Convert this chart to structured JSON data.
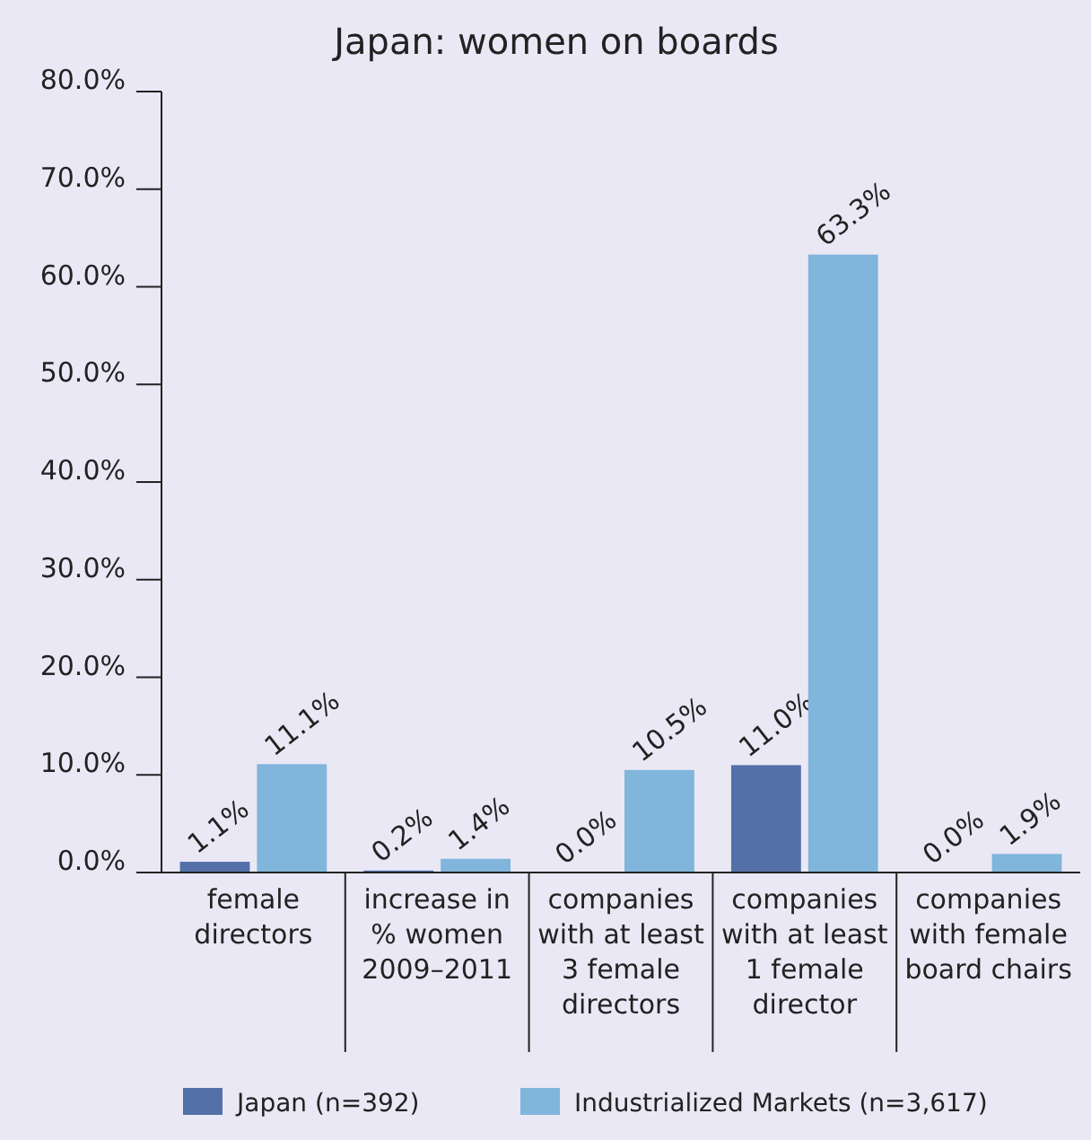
{
  "chart_data": {
    "type": "bar",
    "title": "Japan: women on boards",
    "categories": [
      "female\ndirectors",
      "increase in\n% women\n2009–2011",
      "companies\nwith at least\n3 female\ndirectors",
      "companies\nwith at least\n1 female\ndirector",
      "companies\nwith female\nboard chairs"
    ],
    "series": [
      {
        "name": "Japan (n=392)",
        "color": "#5470a8",
        "values": [
          1.1,
          0.2,
          0.0,
          11.0,
          0.0
        ],
        "value_labels": [
          "1.1%",
          "0.2%",
          "0.0%",
          "11.0%",
          "0.0%"
        ]
      },
      {
        "name": "Industrialized Markets (n=3,617)",
        "color": "#80b5dc",
        "values": [
          11.1,
          1.4,
          10.5,
          63.3,
          1.9
        ],
        "value_labels": [
          "11.1%",
          "1.4%",
          "10.5%",
          "63.3%",
          "1.9%"
        ]
      }
    ],
    "ylim": [
      0,
      80
    ],
    "yticks": [
      {
        "value": 0,
        "label": "0.0%"
      },
      {
        "value": 10,
        "label": "10.0%"
      },
      {
        "value": 20,
        "label": "20.0%"
      },
      {
        "value": 30,
        "label": "30.0%"
      },
      {
        "value": 40,
        "label": "40.0%"
      },
      {
        "value": 50,
        "label": "50.0%"
      },
      {
        "value": 60,
        "label": "60.0%"
      },
      {
        "value": 70,
        "label": "70.0%"
      },
      {
        "value": 80,
        "label": "80.0%"
      }
    ],
    "legend": "bottom",
    "grid": false
  }
}
